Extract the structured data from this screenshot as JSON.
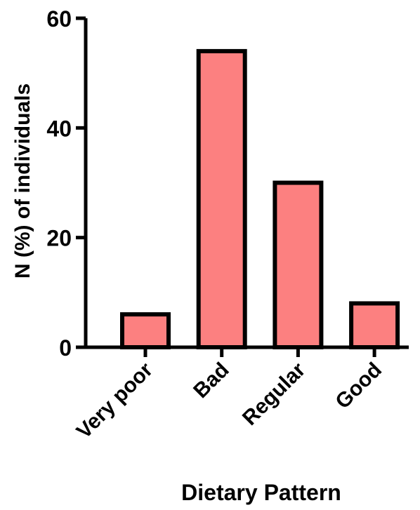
{
  "chart_data": {
    "type": "bar",
    "title": "",
    "xlabel": "Dietary Pattern",
    "ylabel": "N (%) of individuals",
    "categories": [
      "Very poor",
      "Bad",
      "Regular",
      "Good"
    ],
    "values": [
      6,
      54,
      30,
      8
    ],
    "ylim": [
      0,
      60
    ],
    "yticks": [
      "0",
      "20",
      "40",
      "60"
    ],
    "grid": false,
    "legend": "none",
    "bar_color": "#fc8080",
    "bar_edge_color": "#000000"
  }
}
